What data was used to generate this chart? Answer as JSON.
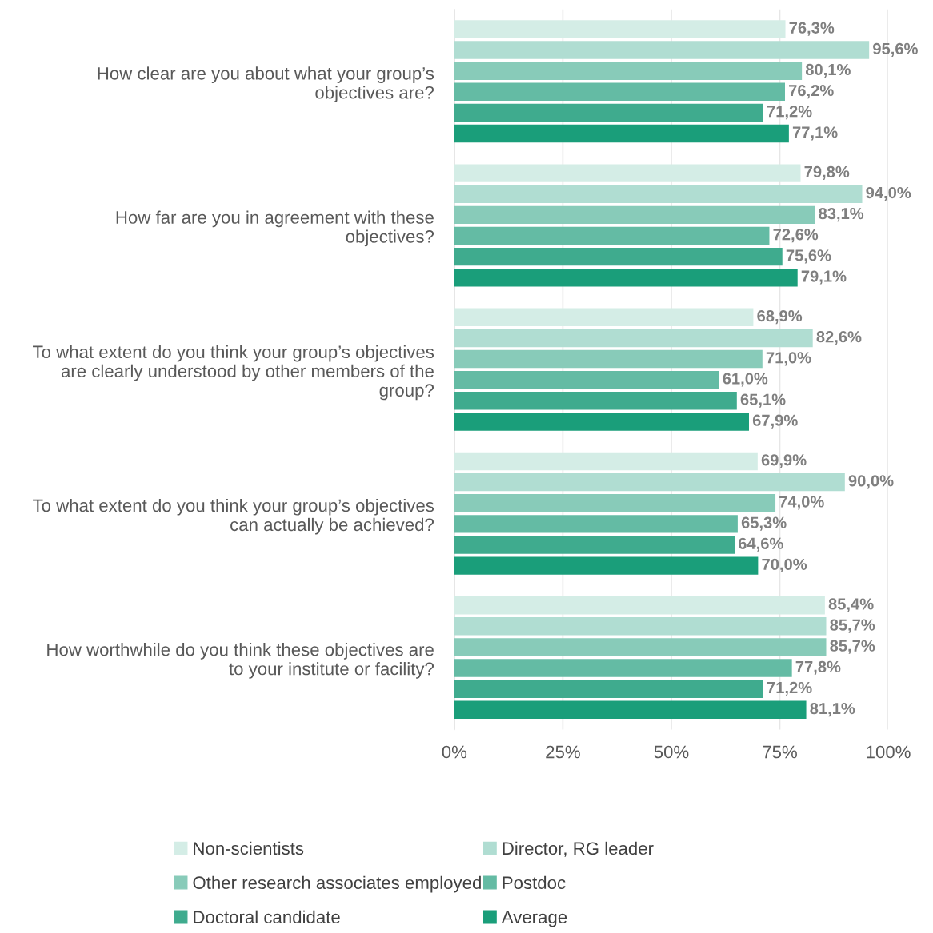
{
  "chart_data": {
    "type": "bar",
    "orientation": "horizontal",
    "categories": [
      "How clear are you about what your group’s\nobjectives are?",
      "How far are you in agreement with these\nobjectives?",
      "To what extent do you think your group’s objectives\nare clearly understood by other members of the\ngroup?",
      "To what extent do you think your group’s objectives\ncan actually be achieved?",
      "How worthwhile do you think these objectives are\nto your institute or facility?"
    ],
    "series": [
      {
        "name": "Non-scientists",
        "color": "#d4ede6",
        "values": [
          76.3,
          79.8,
          68.9,
          69.9,
          85.4
        ],
        "value_labels": [
          "76,3%",
          "79,8%",
          "68,9%",
          "69,9%",
          "85,4%"
        ]
      },
      {
        "name": "Director, RG leader",
        "color": "#b0ddd2",
        "values": [
          95.6,
          94.0,
          82.6,
          90.0,
          85.7
        ],
        "value_labels": [
          "95,6%",
          "94,0%",
          "82,6%",
          "90,0%",
          "85,7%"
        ]
      },
      {
        "name": "Other research associates employed",
        "color": "#88cbb9",
        "values": [
          80.1,
          83.1,
          71.0,
          74.0,
          85.7
        ],
        "value_labels": [
          "80,1%",
          "83,1%",
          "71,0%",
          "74,0%",
          "85,7%"
        ]
      },
      {
        "name": "Postdoc",
        "color": "#64bba4",
        "values": [
          76.2,
          72.6,
          61.0,
          65.3,
          77.8
        ],
        "value_labels": [
          "76,2%",
          "72,6%",
          "61,0%",
          "65,3%",
          "77,8%"
        ]
      },
      {
        "name": "Doctoral candidate",
        "color": "#3fab8e",
        "values": [
          71.2,
          75.6,
          65.1,
          64.6,
          71.2
        ],
        "value_labels": [
          "71,2%",
          "75,6%",
          "65,1%",
          "64,6%",
          "71,2%"
        ]
      },
      {
        "name": "Average",
        "color": "#1a9e7a",
        "values": [
          77.1,
          79.1,
          67.9,
          70.0,
          81.1
        ],
        "value_labels": [
          "77,1%",
          "79,1%",
          "67,9%",
          "70,0%",
          "81,1%"
        ]
      }
    ],
    "xlim": [
      0,
      100
    ],
    "xticks": [
      {
        "value": 0,
        "label": "0%"
      },
      {
        "value": 25,
        "label": "25%"
      },
      {
        "value": 50,
        "label": "50%"
      },
      {
        "value": 75,
        "label": "75%"
      },
      {
        "value": 100,
        "label": "100%"
      }
    ],
    "grid": "x",
    "legend": "bottom"
  }
}
